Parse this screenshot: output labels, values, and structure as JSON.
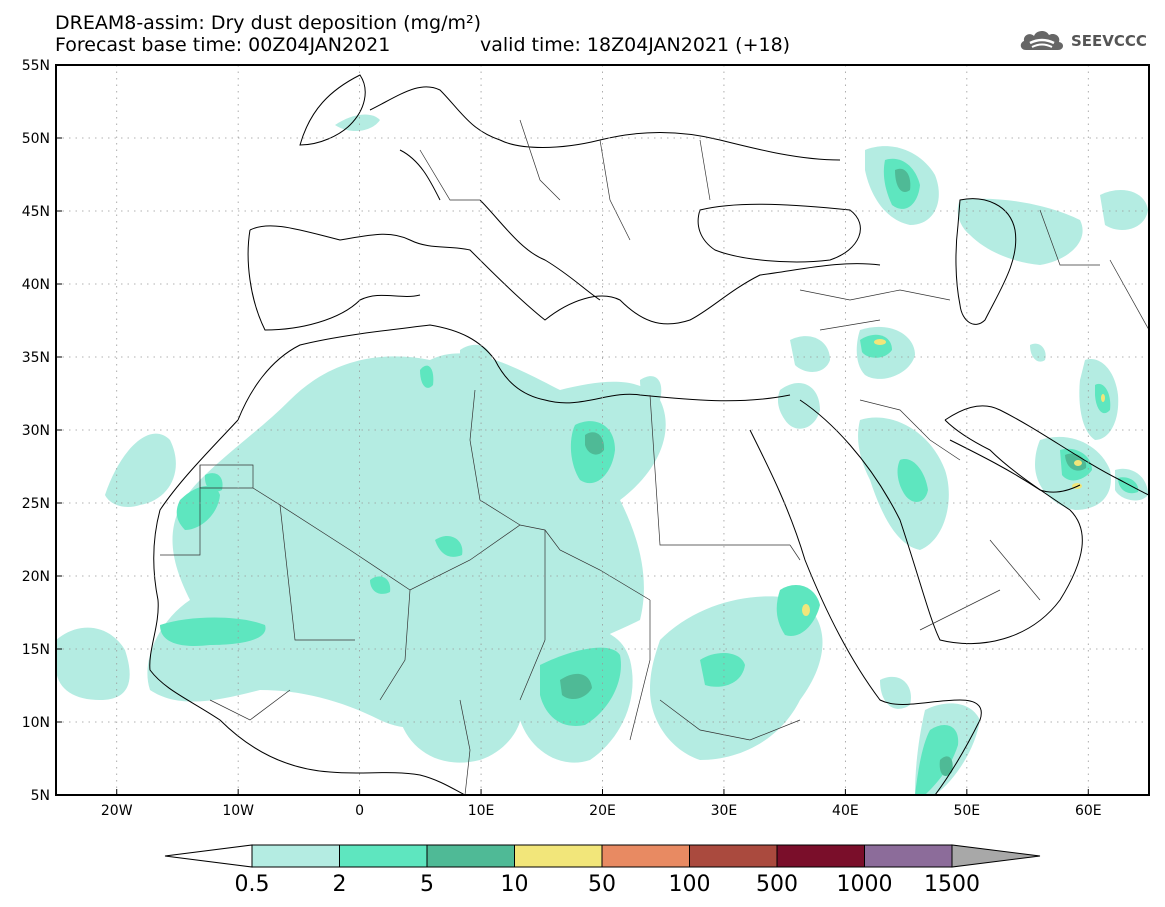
{
  "header": {
    "title_line1": "DREAM8-assim: Dry dust deposition (mg/m²)",
    "title_line2": "Forecast base time: 00Z04JAN2021",
    "valid_time": "valid time: 18Z04JAN2021 (+18)",
    "logo_text": "SEEVCCC",
    "logo_icon": "cloud-icon"
  },
  "map": {
    "lat_labels": [
      "55N",
      "50N",
      "45N",
      "40N",
      "35N",
      "30N",
      "25N",
      "20N",
      "15N",
      "10N",
      "5N"
    ],
    "lon_labels": [
      "20W",
      "10W",
      "0",
      "10E",
      "20E",
      "30E",
      "40E",
      "50E",
      "60E"
    ],
    "lon_range": [
      -25,
      65
    ],
    "lat_range": [
      5,
      55
    ],
    "grid": "dotted"
  },
  "colorbar": {
    "labels": [
      "0.5",
      "2",
      "5",
      "10",
      "50",
      "100",
      "500",
      "1000",
      "1500"
    ],
    "colors": [
      "#b4ece2",
      "#5ee6bf",
      "#4fba96",
      "#f2e67a",
      "#e88a62",
      "#aa4a3e",
      "#7a0e2a",
      "#8c6c9a",
      "#a8a8a8"
    ],
    "under_color": "#ffffff"
  },
  "colors": {
    "level1": "#b4ece2",
    "level2": "#5ee6bf",
    "level3": "#4fba96",
    "level4": "#f2e67a"
  }
}
